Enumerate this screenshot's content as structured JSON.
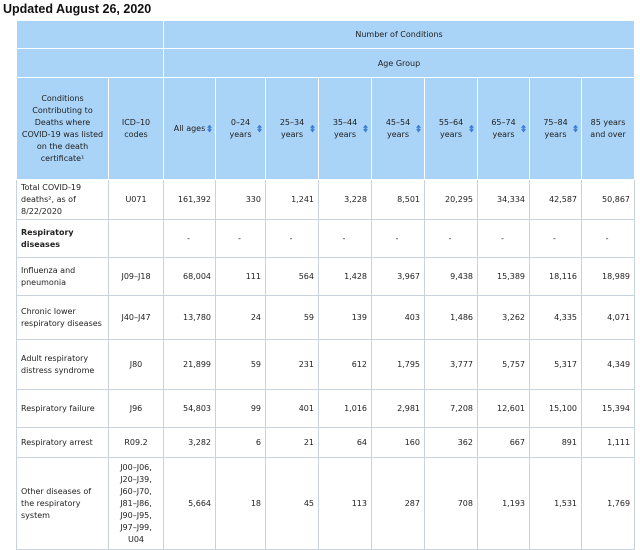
{
  "updated": "Updated August 26, 2020",
  "header": {
    "top": "Number of Conditions",
    "mid": "Age Group",
    "col_condition": "Conditions Contributing to Deaths where COVID-19 was listed on the death certificate¹",
    "col_icd": "ICD–10 codes",
    "age_cols": [
      "All ages",
      "0–24 years",
      "25–34 years",
      "35–44 years",
      "45–54 years",
      "55–64 years",
      "65–74 years",
      "75–84 years",
      "85 years and over"
    ]
  },
  "rows": [
    {
      "condition": "Total COVID-19 deaths², as of 8/22/2020",
      "icd": "U071",
      "values": [
        "161,392",
        "330",
        "1,241",
        "3,228",
        "8,501",
        "20,295",
        "34,334",
        "42,587",
        "50,867"
      ],
      "section": false
    },
    {
      "condition": "Respiratory diseases",
      "icd": "",
      "values": [
        "-",
        "-",
        "-",
        "-",
        "-",
        "-",
        "-",
        "-",
        "-"
      ],
      "section": true
    },
    {
      "condition": "Influenza and pneumonia",
      "icd": "J09–J18",
      "values": [
        "68,004",
        "111",
        "564",
        "1,428",
        "3,967",
        "9,438",
        "15,389",
        "18,116",
        "18,989"
      ],
      "section": false
    },
    {
      "condition": "Chronic lower respiratory diseases",
      "icd": "J40–J47",
      "values": [
        "13,780",
        "24",
        "59",
        "139",
        "403",
        "1,486",
        "3,262",
        "4,335",
        "4,071"
      ],
      "section": false
    },
    {
      "condition": "Adult respiratory distress syndrome",
      "icd": "J80",
      "values": [
        "21,899",
        "59",
        "231",
        "612",
        "1,795",
        "3,777",
        "5,757",
        "5,317",
        "4,349"
      ],
      "section": false
    },
    {
      "condition": "Respiratory failure",
      "icd": "J96",
      "values": [
        "54,803",
        "99",
        "401",
        "1,016",
        "2,981",
        "7,208",
        "12,601",
        "15,100",
        "15,394"
      ],
      "section": false
    },
    {
      "condition": "Respiratory arrest",
      "icd": "R09.2",
      "values": [
        "3,282",
        "6",
        "21",
        "64",
        "160",
        "362",
        "667",
        "891",
        "1,111"
      ],
      "section": false
    },
    {
      "condition": "Other diseases of the respiratory system",
      "icd": "J00–J06, J20–J39, J60–J70, J81–J86, J90–J95, J97–J99, U04",
      "values": [
        "5,664",
        "18",
        "45",
        "113",
        "287",
        "708",
        "1,193",
        "1,531",
        "1,769"
      ],
      "section": false
    }
  ],
  "colors": {
    "header_bg": "#a9d3f7",
    "sort_icon": "#3d7fd3",
    "grid": "#c9d3dd"
  },
  "icons": {
    "sort": "sort-arrows-icon"
  }
}
